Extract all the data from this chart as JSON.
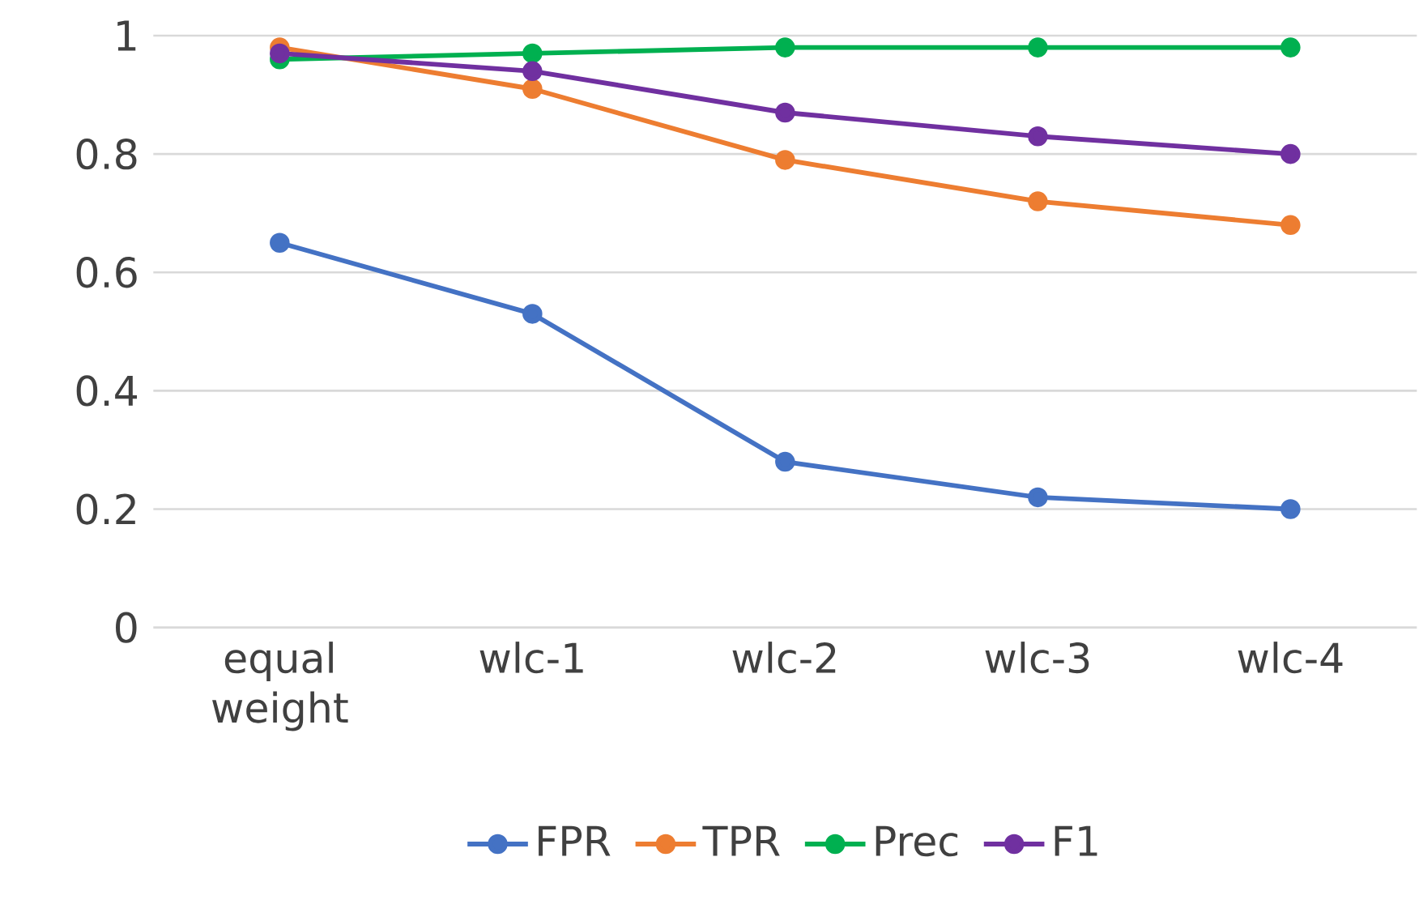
{
  "chart_data": {
    "type": "line",
    "categories": [
      "equal weight",
      "wlc-1",
      "wlc-2",
      "wlc-3",
      "wlc-4"
    ],
    "series": [
      {
        "name": "FPR",
        "color": "#4472c4",
        "values": [
          0.65,
          0.53,
          0.28,
          0.22,
          0.2
        ]
      },
      {
        "name": "TPR",
        "color": "#ed7d31",
        "values": [
          0.98,
          0.91,
          0.79,
          0.72,
          0.68
        ]
      },
      {
        "name": "Prec",
        "color": "#00b050",
        "values": [
          0.96,
          0.97,
          0.98,
          0.98,
          0.98
        ]
      },
      {
        "name": "F1",
        "color": "#7030a0",
        "values": [
          0.97,
          0.94,
          0.87,
          0.83,
          0.8
        ]
      }
    ],
    "ylim": [
      0,
      1
    ],
    "yticks": [
      0,
      0.2,
      0.4,
      0.6,
      0.8,
      1
    ],
    "grid": "y",
    "legend": "bottom",
    "marker": "circle",
    "line_style": "solid"
  }
}
